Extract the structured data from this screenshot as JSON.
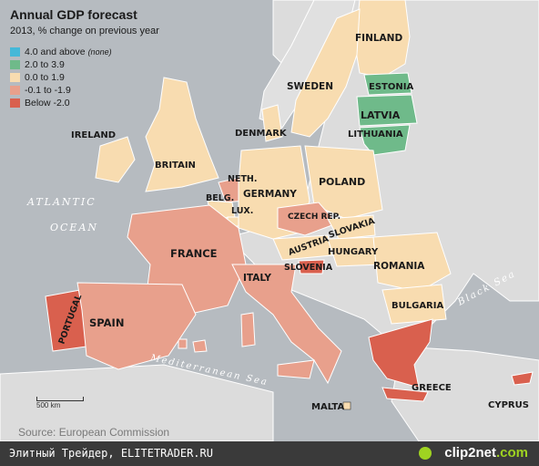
{
  "title": "Annual GDP forecast",
  "subtitle": "2013, % change on previous year",
  "legend": [
    {
      "label": "4.0 and above",
      "note": "(none)",
      "color": "#45b8d8"
    },
    {
      "label": "2.0 to 3.9",
      "note": "",
      "color": "#6fba8a"
    },
    {
      "label": "0.0 to 1.9",
      "note": "",
      "color": "#f8dcb0"
    },
    {
      "label": "-0.1 to -1.9",
      "note": "",
      "color": "#e8a08c"
    },
    {
      "label": "Below -2.0",
      "note": "",
      "color": "#d9604e"
    }
  ],
  "countries": {
    "finland": "FINLAND",
    "sweden": "SWEDEN",
    "estonia": "ESTONIA",
    "latvia": "LATVIA",
    "lithuania": "LITHUANIA",
    "denmark": "DENMARK",
    "ireland": "IRELAND",
    "britain": "BRITAIN",
    "neth": "NETH.",
    "belg": "BELG.",
    "lux": "LUX.",
    "germany": "GERMANY",
    "poland": "POLAND",
    "czech": "CZECH REP.",
    "slovakia": "SLOVAKIA",
    "austria": "AUSTRIA",
    "hungary": "HUNGARY",
    "slovenia": "SLOVENIA",
    "france": "FRANCE",
    "romania": "ROMANIA",
    "italy": "ITALY",
    "bulgaria": "BULGARIA",
    "portugal": "PORTUGAL",
    "spain": "SPAIN",
    "greece": "GREECE",
    "malta": "MALTA",
    "cyprus": "CYPRUS"
  },
  "seas": {
    "atlantic": "ATLANTIC",
    "ocean": "OCEAN",
    "black_sea": "Black Sea",
    "mediterranean": "Mediterranean Sea"
  },
  "scale_label": "500 km",
  "source": "Source: European Commission",
  "footer": {
    "left": "Элитный Трейдер, ELITETRADER.RU",
    "brand": "clip2net",
    "brand_suffix": ".com"
  }
}
